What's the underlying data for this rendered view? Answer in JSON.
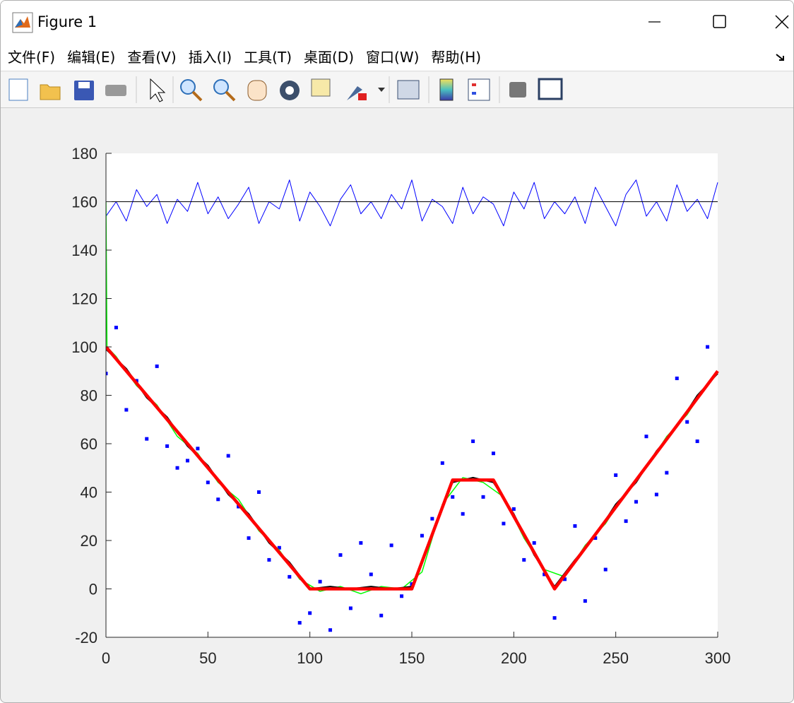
{
  "window": {
    "title": "Figure 1",
    "menu": [
      "文件(F)",
      "编辑(E)",
      "查看(V)",
      "插入(I)",
      "工具(T)",
      "桌面(D)",
      "窗口(W)",
      "帮助(H)"
    ]
  },
  "chart_data": {
    "type": "line",
    "xlim": [
      0,
      300
    ],
    "ylim": [
      -20,
      180
    ],
    "xticks": [
      0,
      50,
      100,
      150,
      200,
      250,
      300
    ],
    "yticks": [
      -20,
      0,
      20,
      40,
      60,
      80,
      100,
      120,
      140,
      160,
      180
    ],
    "series": [
      {
        "color": "#0000ff",
        "linewidth": 1,
        "x": [
          0,
          5,
          10,
          15,
          20,
          25,
          30,
          35,
          40,
          45,
          50,
          55,
          60,
          65,
          70,
          75,
          80,
          85,
          90,
          95,
          100,
          105,
          110,
          115,
          120,
          125,
          130,
          135,
          140,
          145,
          150,
          155,
          160,
          165,
          170,
          175,
          180,
          185,
          190,
          195,
          200,
          205,
          210,
          215,
          220,
          225,
          230,
          235,
          240,
          245,
          250,
          255,
          260,
          265,
          270,
          275,
          280,
          285,
          290,
          295,
          300
        ],
        "values": [
          154,
          160,
          152,
          165,
          158,
          163,
          151,
          161,
          156,
          168,
          155,
          162,
          153,
          159,
          166,
          151,
          160,
          157,
          169,
          152,
          164,
          158,
          150,
          161,
          167,
          155,
          160,
          153,
          163,
          157,
          169,
          152,
          161,
          158,
          151,
          166,
          155,
          162,
          159,
          150,
          164,
          157,
          168,
          153,
          160,
          155,
          162,
          151,
          166,
          158,
          150,
          163,
          169,
          154,
          160,
          152,
          167,
          156,
          161,
          153,
          168
        ]
      },
      {
        "color": "#000000",
        "linewidth": 1,
        "x": [
          0,
          300
        ],
        "values": [
          160,
          160
        ]
      },
      {
        "color": "#0000ff",
        "marker": "square",
        "x": [
          0,
          5,
          10,
          15,
          20,
          25,
          30,
          35,
          40,
          45,
          50,
          55,
          60,
          65,
          70,
          75,
          80,
          85,
          90,
          95,
          100,
          105,
          110,
          115,
          120,
          125,
          130,
          135,
          140,
          145,
          150,
          155,
          160,
          165,
          170,
          175,
          180,
          185,
          190,
          195,
          200,
          205,
          210,
          215,
          220,
          225,
          230,
          235,
          240,
          245,
          250,
          255,
          260,
          265,
          270,
          275,
          280,
          285,
          290,
          295
        ],
        "values": [
          89,
          108,
          74,
          86,
          62,
          92,
          59,
          50,
          53,
          58,
          44,
          37,
          55,
          34,
          21,
          40,
          12,
          17,
          5,
          -14,
          -10,
          3,
          -17,
          14,
          -8,
          19,
          6,
          -11,
          18,
          -3,
          2,
          22,
          29,
          52,
          38,
          31,
          61,
          38,
          56,
          27,
          33,
          12,
          19,
          6,
          -12,
          4,
          26,
          -5,
          21,
          8,
          47,
          28,
          36,
          63,
          39,
          48,
          87,
          69,
          61,
          100
        ]
      },
      {
        "color": "#00ff00",
        "linewidth": 1.5,
        "x": [
          0,
          0.5,
          5,
          15,
          25,
          35,
          45,
          55,
          65,
          75,
          85,
          95,
          105,
          115,
          125,
          135,
          145,
          155,
          165,
          175,
          185,
          195,
          205,
          215,
          225,
          235,
          245,
          255,
          265,
          275,
          285,
          295
        ],
        "values": [
          160,
          100,
          96,
          84,
          76,
          63,
          56,
          44,
          37,
          24,
          16,
          4,
          -1,
          1,
          -2,
          1,
          0,
          7,
          35,
          46,
          44,
          38,
          21,
          8,
          5,
          18,
          27,
          40,
          50,
          63,
          72,
          85
        ]
      },
      {
        "color": "#000000",
        "linewidth": 2,
        "x": [
          0,
          10,
          20,
          30,
          40,
          50,
          60,
          70,
          80,
          90,
          100,
          110,
          120,
          130,
          140,
          150,
          160,
          170,
          180,
          190,
          200,
          210,
          220,
          230,
          240,
          250,
          260,
          270,
          280,
          290,
          300
        ],
        "values": [
          99,
          91,
          79,
          71,
          59,
          51,
          39,
          31,
          19,
          11,
          0,
          1,
          0,
          1,
          0,
          1,
          23,
          44,
          46,
          44,
          31,
          14,
          1,
          12,
          22,
          35,
          44,
          57,
          67,
          80,
          89
        ]
      },
      {
        "color": "#ff0000",
        "linewidth": 4.5,
        "x": [
          0,
          100,
          150,
          170,
          190,
          220,
          300
        ],
        "values": [
          100,
          0,
          0,
          45,
          45,
          0,
          90
        ]
      }
    ]
  }
}
